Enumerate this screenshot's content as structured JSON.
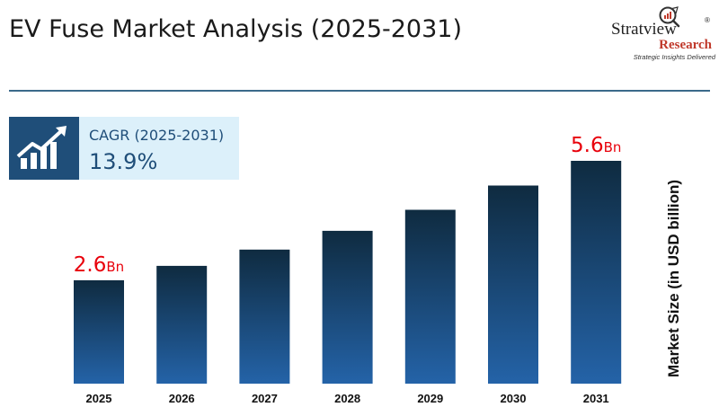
{
  "header": {
    "title": "EV Fuse Market Analysis (2025-2031)"
  },
  "logo": {
    "brand": "Stratview",
    "reg": "®",
    "research": "Research",
    "tagline": "Strategic Insights Delivered",
    "icon": "magnifier-chart-icon"
  },
  "cagr": {
    "label": "CAGR (2025-2031)",
    "value": "13.9%",
    "icon": "trend-up-chart-icon"
  },
  "colors": {
    "bar_top": "#0f2b40",
    "bar_bottom": "#2463a8",
    "annotation": "#e8000b",
    "cagr_bg": "#dcf0fa",
    "cagr_icon_bg": "#1f4e79",
    "rule": "#3b6a8a",
    "research": "#c0392b"
  },
  "chart_data": {
    "type": "bar",
    "title": "",
    "xlabel": "",
    "ylabel": "Market Size (in USD billion)",
    "categories": [
      "2025",
      "2026",
      "2027",
      "2028",
      "2029",
      "2030",
      "2031"
    ],
    "values": [
      2.6,
      2.96,
      3.37,
      3.84,
      4.37,
      4.98,
      5.6
    ],
    "ylim": [
      0,
      5.6
    ],
    "grid": false,
    "annotations": [
      {
        "category": "2025",
        "value_text": "2.6",
        "unit": "Bn"
      },
      {
        "category": "2031",
        "value_text": "5.6",
        "unit": "Bn"
      }
    ]
  }
}
